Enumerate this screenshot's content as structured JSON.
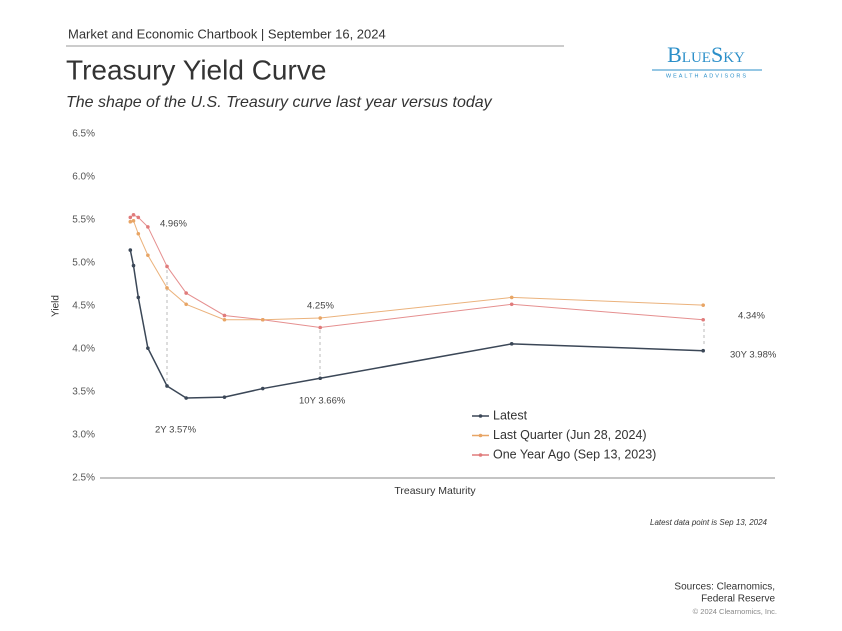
{
  "header": "Market and Economic Chartbook | September 16, 2024",
  "logo": {
    "name": "BlueSky",
    "tagline": "WEALTH ADVISORS"
  },
  "chart_data": {
    "type": "line",
    "title": "Treasury Yield Curve",
    "subtitle": "The shape of the U.S. Treasury curve last year versus today",
    "y_label": "Yield",
    "x_label": "Treasury Maturity",
    "x": [
      0.083,
      0.25,
      0.5,
      1,
      2,
      3,
      5,
      7,
      10,
      20,
      30
    ],
    "xlim": [
      -1.5,
      33.75
    ],
    "ylim": [
      2.5,
      6.5
    ],
    "yticks": [
      {
        "value": 2.5,
        "label": "2.5%"
      },
      {
        "value": 3.0,
        "label": "3.0%"
      },
      {
        "value": 3.5,
        "label": "3.5%"
      },
      {
        "value": 4.0,
        "label": "4.0%"
      },
      {
        "value": 4.5,
        "label": "4.5%"
      },
      {
        "value": 5.0,
        "label": "5.0%"
      },
      {
        "value": 5.5,
        "label": "5.5%"
      },
      {
        "value": 6.0,
        "label": "6.0%"
      },
      {
        "value": 6.5,
        "label": "6.5%"
      }
    ],
    "grid": false,
    "legend": "lower-center",
    "series": [
      {
        "name": "Latest",
        "color": "#3b4757",
        "values": [
          5.15,
          4.97,
          4.6,
          4.01,
          3.57,
          3.43,
          3.44,
          3.54,
          3.66,
          4.06,
          3.98
        ]
      },
      {
        "name": "Last Quarter (Jun 28, 2024)",
        "color": "#e8a565",
        "values": [
          5.48,
          5.49,
          5.34,
          5.09,
          4.71,
          4.52,
          4.34,
          4.34,
          4.36,
          4.6,
          4.51
        ]
      },
      {
        "name": "One Year Ago (Sep 13, 2023)",
        "color": "#e07b7b",
        "values": [
          5.53,
          5.56,
          5.53,
          5.42,
          4.96,
          4.65,
          4.39,
          4.34,
          4.25,
          4.52,
          4.34
        ]
      }
    ],
    "annotations": [
      "4.96%",
      "2Y 3.57%",
      "4.25%",
      "10Y 3.66%",
      "4.34%",
      "30Y 3.98%"
    ]
  },
  "footnote": "Latest data point is Sep 13, 2024",
  "sources": [
    "Sources: Clearnomics,",
    "Federal Reserve"
  ],
  "copyright": "© 2024 Clearnomics, Inc."
}
